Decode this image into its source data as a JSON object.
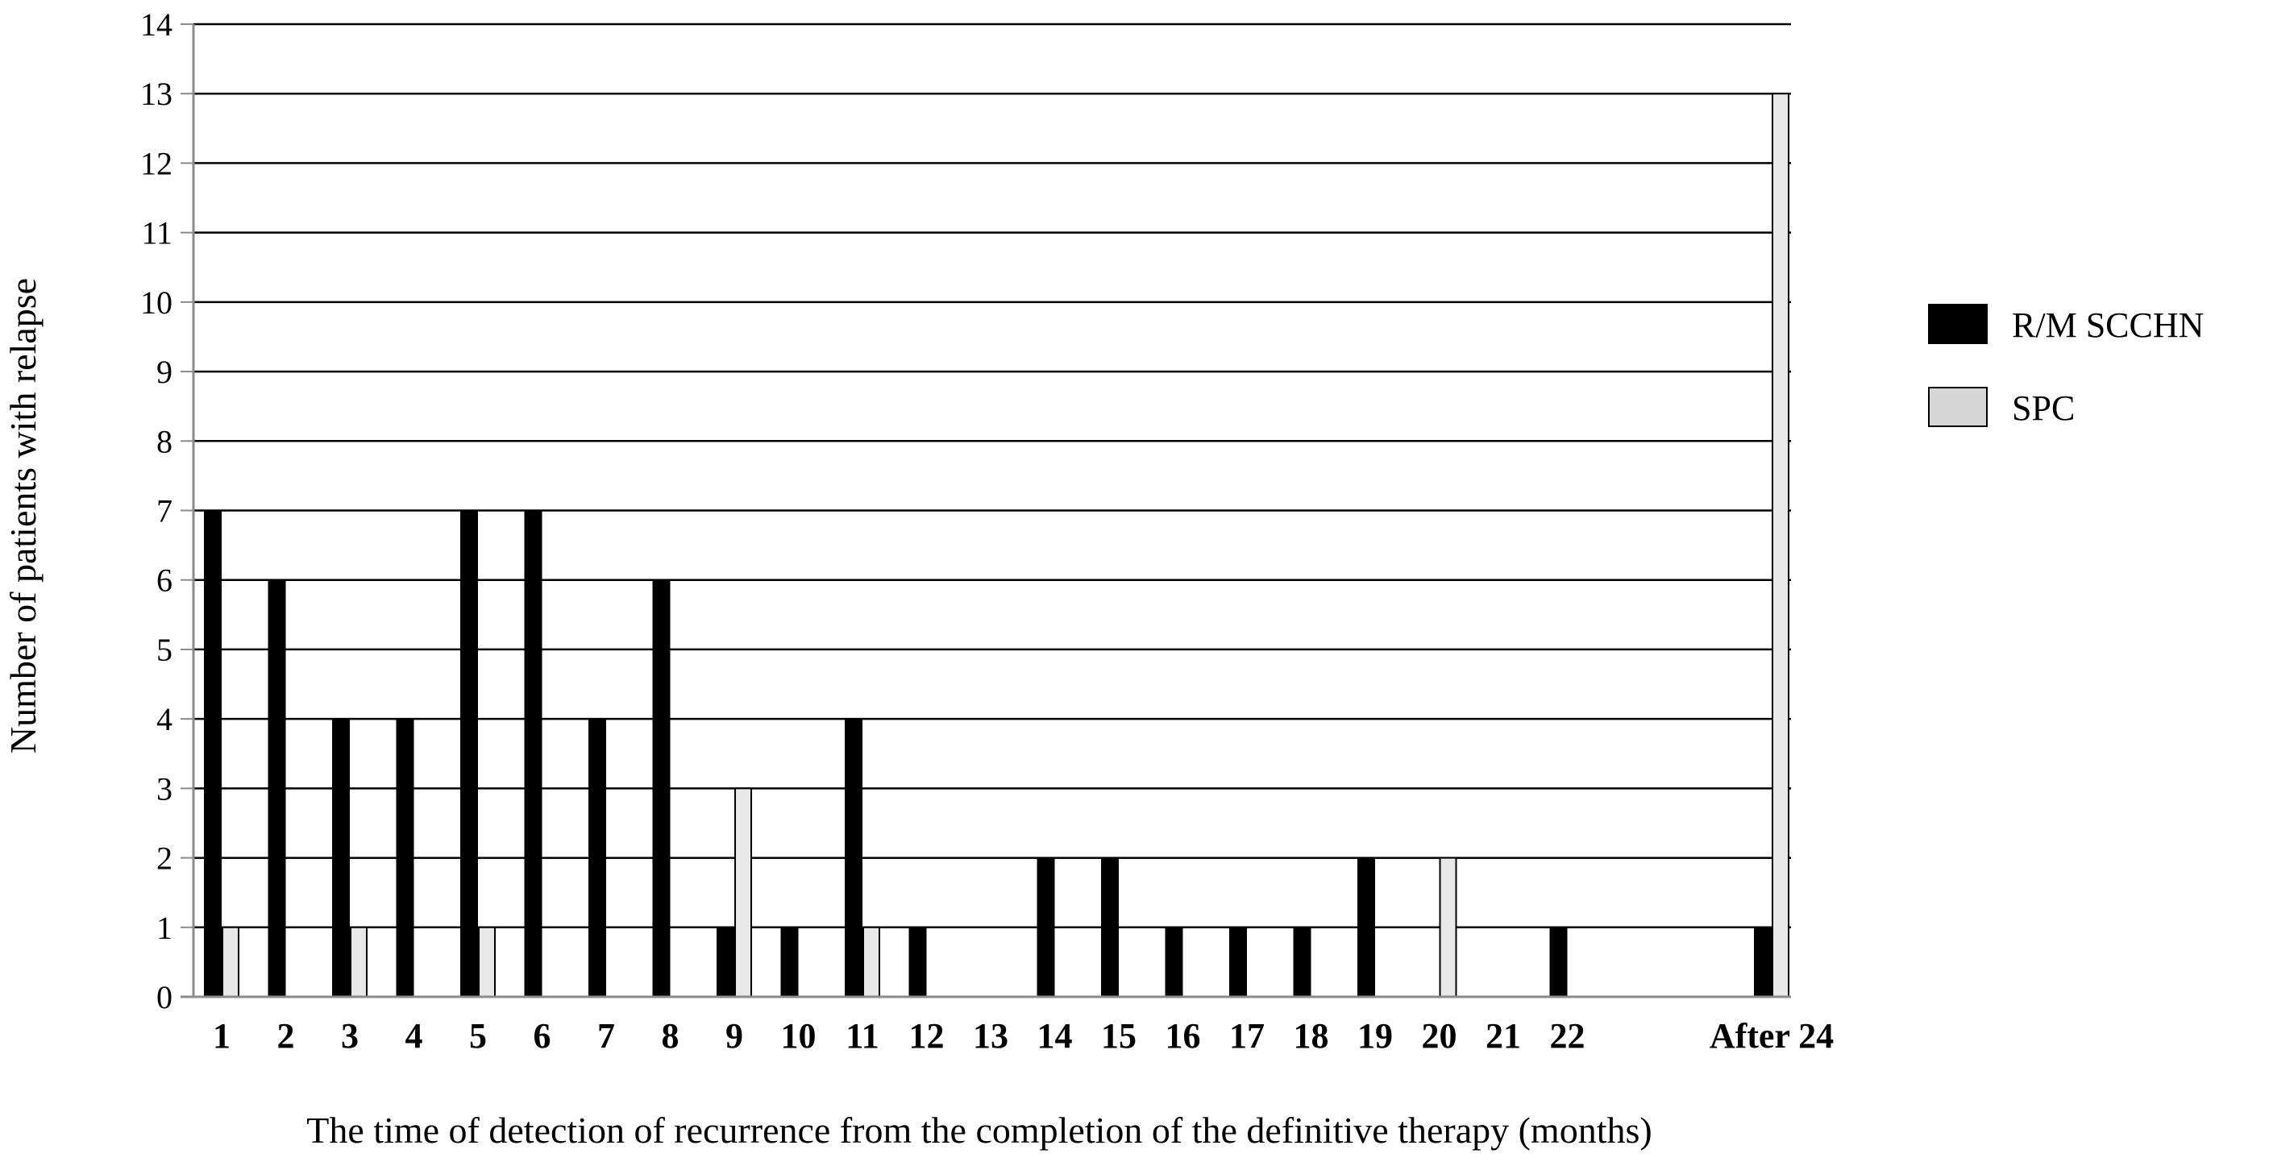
{
  "chart_data": {
    "type": "bar",
    "title": "",
    "xlabel": "The time of detection of recurrence from the completion of the definitive therapy (months)",
    "ylabel": "Number of patients with relapse",
    "ylim": [
      0,
      14
    ],
    "yticks": [
      0,
      1,
      2,
      3,
      4,
      5,
      6,
      7,
      8,
      9,
      10,
      11,
      12,
      13,
      14
    ],
    "grid": "horizontal",
    "legend_position": "right",
    "categories": [
      "1",
      "2",
      "3",
      "4",
      "5",
      "6",
      "7",
      "8",
      "9",
      "10",
      "11",
      "12",
      "13",
      "14",
      "15",
      "16",
      "17",
      "18",
      "19",
      "20",
      "21",
      "22",
      "After 24"
    ],
    "series": [
      {
        "name": "R/M SCCHN",
        "color": "#000000",
        "values": [
          7,
          6,
          4,
          4,
          7,
          7,
          4,
          6,
          1,
          1,
          4,
          1,
          0,
          2,
          2,
          1,
          1,
          1,
          2,
          0,
          0,
          1,
          1
        ]
      },
      {
        "name": "SPC",
        "color": "#e8e8e8",
        "values": [
          1,
          0,
          1,
          0,
          1,
          0,
          0,
          0,
          3,
          0,
          1,
          0,
          0,
          0,
          0,
          0,
          0,
          0,
          0,
          2,
          0,
          0,
          13
        ]
      }
    ]
  }
}
